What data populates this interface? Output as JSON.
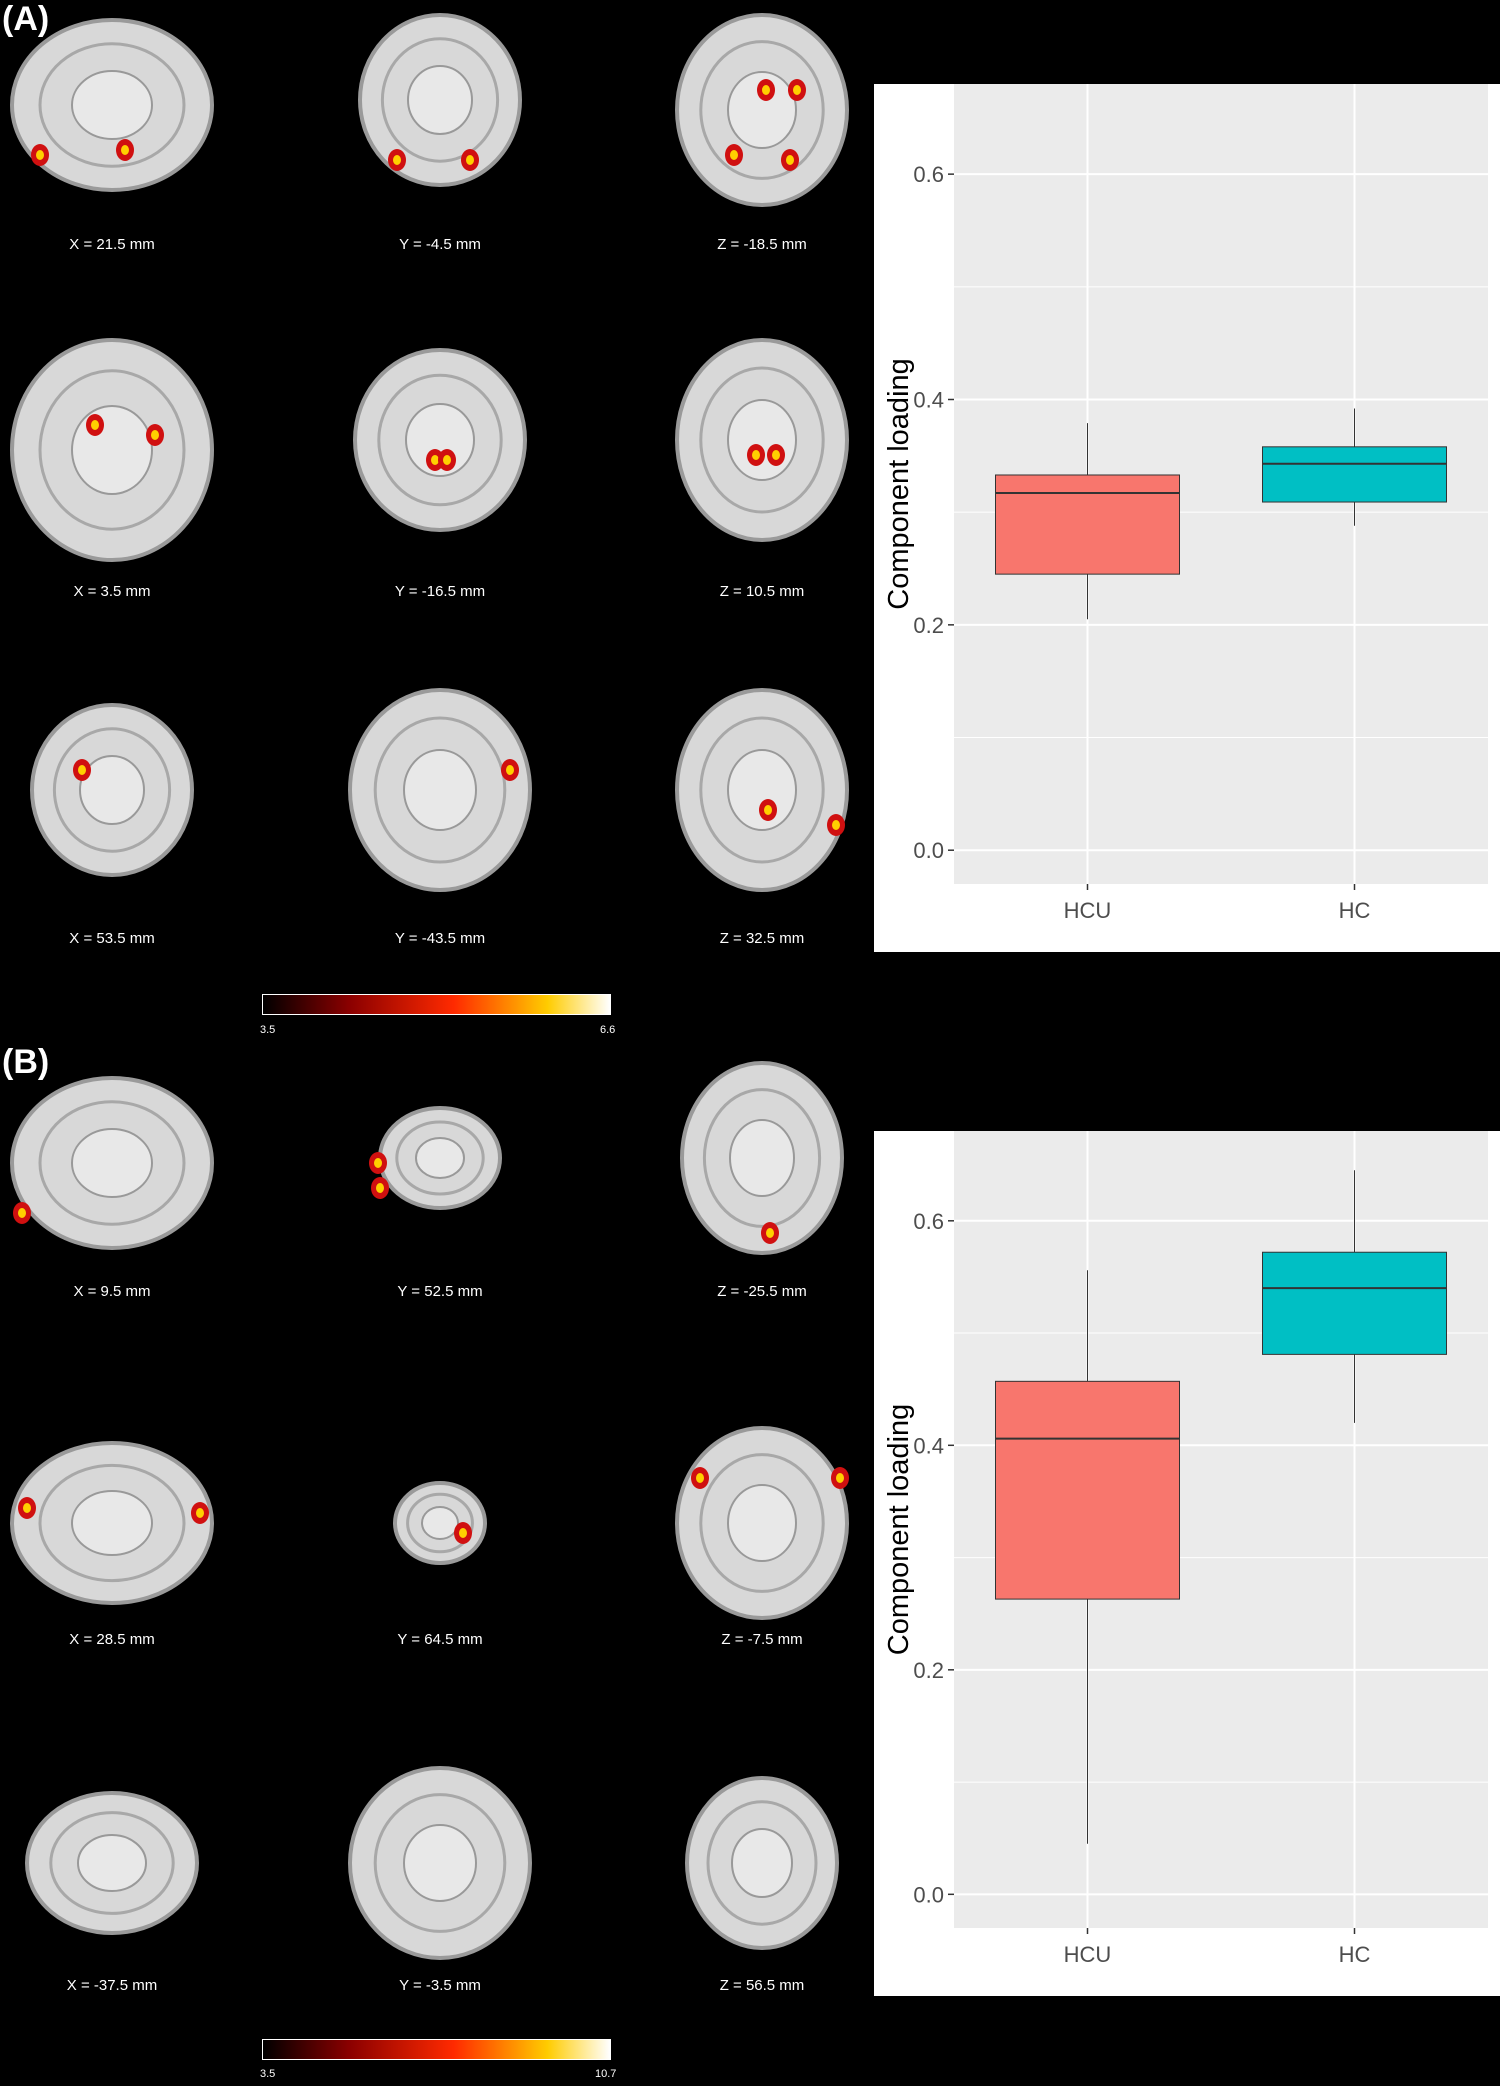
{
  "panels": [
    {
      "label": "(A)",
      "coords": [
        "X = 21.5 mm",
        "Y = -4.5 mm",
        "Z = -18.5 mm",
        "X = 3.5 mm",
        "Y = -16.5 mm",
        "Z = 10.5 mm",
        "X = 53.5 mm",
        "Y = -43.5 mm",
        "Z = 32.5 mm"
      ],
      "colorbar": {
        "min": "3.5",
        "max": "6.6"
      }
    },
    {
      "label": "(B)",
      "coords": [
        "X = 9.5 mm",
        "Y = 52.5 mm",
        "Z = -25.5 mm",
        "X = 28.5 mm",
        "Y = 64.5 mm",
        "Z = -7.5 mm",
        "X = -37.5 mm",
        "Y = -3.5 mm",
        "Z = 56.5 mm"
      ],
      "colorbar": {
        "min": "3.5",
        "max": "10.7"
      }
    }
  ],
  "chart_data": [
    {
      "type": "box",
      "ylabel": "Component loading",
      "ylim": [
        -0.03,
        0.68
      ],
      "yticks": [
        "0.0",
        "0.2",
        "0.4",
        "0.6"
      ],
      "grid": true,
      "categories": [
        "HCU",
        "HC"
      ],
      "boxes": [
        {
          "category": "HCU",
          "whisker_low": 0.205,
          "q1": 0.245,
          "median": 0.317,
          "q3": 0.333,
          "whisker_high": 0.379,
          "color": "#F8766D"
        },
        {
          "category": "HC",
          "whisker_low": 0.288,
          "q1": 0.309,
          "median": 0.343,
          "q3": 0.358,
          "whisker_high": 0.392,
          "color": "#00BFC4"
        }
      ]
    },
    {
      "type": "box",
      "ylabel": "Component loading",
      "ylim": [
        -0.03,
        0.68
      ],
      "yticks": [
        "0.0",
        "0.2",
        "0.4",
        "0.6"
      ],
      "grid": true,
      "categories": [
        "HCU",
        "HC"
      ],
      "boxes": [
        {
          "category": "HCU",
          "whisker_low": 0.045,
          "q1": 0.263,
          "median": 0.406,
          "q3": 0.457,
          "whisker_high": 0.556,
          "color": "#F8766D"
        },
        {
          "category": "HC",
          "whisker_low": 0.42,
          "q1": 0.481,
          "median": 0.54,
          "q3": 0.572,
          "whisker_high": 0.645,
          "color": "#00BFC4"
        }
      ]
    }
  ]
}
